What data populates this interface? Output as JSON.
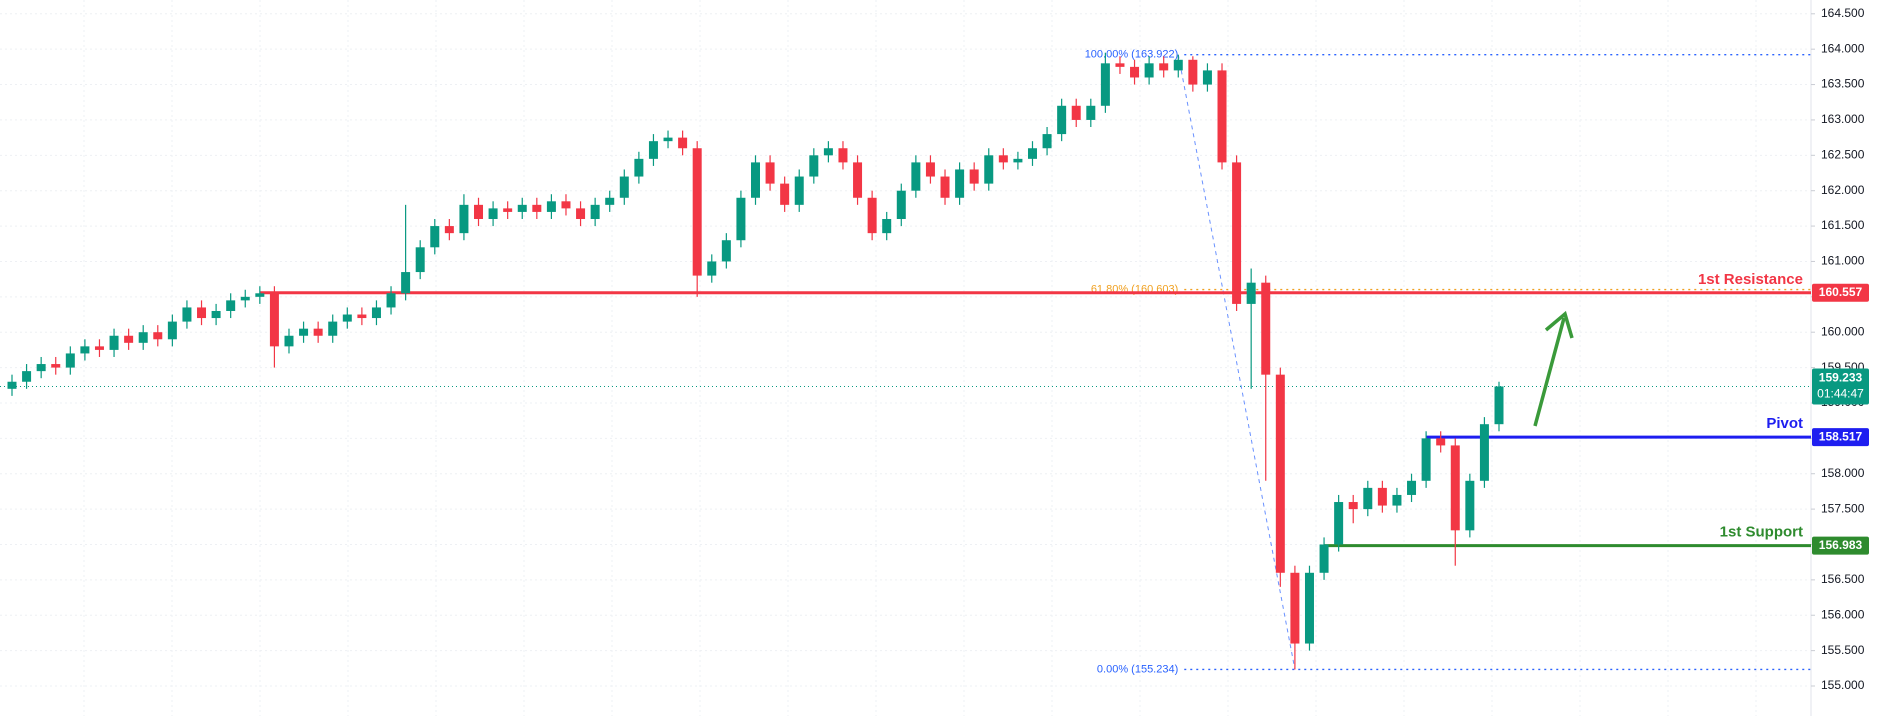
{
  "chart_data": {
    "type": "candlestick",
    "ylim": [
      154.576,
      164.695
    ],
    "yticks": [
      {
        "value": 155,
        "label": "155.000"
      },
      {
        "value": 155.5,
        "label": "155.500"
      },
      {
        "value": 156,
        "label": "156.000"
      },
      {
        "value": 156.5,
        "label": "156.500"
      },
      {
        "value": 157,
        "label": "157.000"
      },
      {
        "value": 157.5,
        "label": "157.500"
      },
      {
        "value": 158,
        "label": "158.000"
      },
      {
        "value": 158.5,
        "label": "158.500"
      },
      {
        "value": 159,
        "label": "159.000"
      },
      {
        "value": 159.5,
        "label": "159.500"
      },
      {
        "value": 160,
        "label": "160.000"
      },
      {
        "value": 160.5,
        "label": "160.500"
      },
      {
        "value": 161,
        "label": "161.000"
      },
      {
        "value": 161.5,
        "label": "161.500"
      },
      {
        "value": 162,
        "label": "162.000"
      },
      {
        "value": 162.5,
        "label": "162.500"
      },
      {
        "value": 163,
        "label": "163.000"
      },
      {
        "value": 163.5,
        "label": "163.500"
      },
      {
        "value": 164,
        "label": "164.000"
      },
      {
        "value": 164.5,
        "label": "164.500"
      }
    ],
    "grid": true,
    "up_color": "#089981",
    "down_color": "#f23645",
    "open": [
      159.2,
      159.3,
      159.45,
      159.55,
      159.5,
      159.7,
      159.8,
      159.75,
      159.95,
      159.85,
      160.0,
      159.9,
      160.15,
      160.35,
      160.2,
      160.3,
      160.45,
      160.5,
      160.55,
      159.8,
      159.95,
      160.05,
      159.95,
      160.15,
      160.25,
      160.2,
      160.35,
      160.55,
      160.85,
      161.2,
      161.5,
      161.4,
      161.8,
      161.6,
      161.75,
      161.7,
      161.8,
      161.7,
      161.85,
      161.75,
      161.6,
      161.8,
      161.9,
      162.2,
      162.45,
      162.7,
      162.75,
      162.6,
      160.8,
      161.0,
      161.3,
      161.9,
      162.4,
      162.1,
      161.8,
      162.2,
      162.5,
      162.6,
      162.4,
      161.9,
      161.4,
      161.6,
      162.0,
      162.4,
      162.2,
      161.9,
      162.3,
      162.1,
      162.5,
      162.4,
      162.45,
      162.6,
      162.8,
      163.2,
      163.0,
      163.2,
      163.8,
      163.75,
      163.6,
      163.8,
      163.7,
      163.85,
      163.5,
      163.7,
      162.4,
      160.4,
      160.7,
      159.4,
      156.6,
      155.6,
      156.6,
      157.0,
      157.6,
      157.5,
      157.8,
      157.55,
      157.7,
      157.9,
      158.5,
      158.4,
      157.2,
      157.9,
      158.7
    ],
    "high": [
      159.4,
      159.55,
      159.65,
      159.65,
      159.8,
      159.9,
      159.9,
      160.05,
      160.05,
      160.1,
      160.1,
      160.25,
      160.45,
      160.45,
      160.4,
      160.55,
      160.6,
      160.65,
      160.65,
      160.05,
      160.15,
      160.15,
      160.25,
      160.35,
      160.35,
      160.45,
      160.65,
      161.8,
      161.3,
      161.6,
      161.6,
      161.95,
      161.9,
      161.85,
      161.85,
      161.9,
      161.9,
      161.95,
      161.95,
      161.85,
      161.9,
      162.0,
      162.3,
      162.55,
      162.8,
      162.85,
      162.85,
      162.7,
      161.1,
      161.4,
      162.0,
      162.5,
      162.5,
      162.2,
      162.3,
      162.6,
      162.7,
      162.7,
      162.5,
      162.0,
      161.7,
      162.1,
      162.5,
      162.5,
      162.3,
      162.4,
      162.4,
      162.6,
      162.6,
      162.55,
      162.7,
      162.9,
      163.3,
      163.3,
      163.3,
      163.95,
      163.9,
      163.85,
      163.9,
      163.9,
      163.922,
      163.9,
      163.8,
      163.8,
      162.5,
      160.9,
      160.8,
      159.5,
      156.7,
      156.7,
      157.1,
      157.7,
      157.7,
      157.9,
      157.9,
      157.8,
      158.0,
      158.6,
      158.6,
      158.5,
      158.0,
      158.8,
      159.3
    ],
    "low": [
      159.1,
      159.2,
      159.35,
      159.4,
      159.4,
      159.6,
      159.65,
      159.65,
      159.75,
      159.75,
      159.8,
      159.8,
      160.05,
      160.1,
      160.1,
      160.2,
      160.35,
      160.4,
      159.5,
      159.7,
      159.85,
      159.85,
      159.85,
      160.05,
      160.1,
      160.1,
      160.25,
      160.45,
      160.75,
      161.1,
      161.3,
      161.3,
      161.5,
      161.5,
      161.6,
      161.6,
      161.6,
      161.6,
      161.65,
      161.5,
      161.5,
      161.7,
      161.8,
      162.1,
      162.35,
      162.6,
      162.5,
      160.5,
      160.7,
      160.9,
      161.2,
      161.8,
      162.0,
      161.7,
      161.7,
      162.1,
      162.4,
      162.3,
      161.8,
      161.3,
      161.3,
      161.5,
      161.9,
      162.1,
      161.8,
      161.8,
      162.0,
      162.0,
      162.3,
      162.3,
      162.35,
      162.5,
      162.7,
      162.9,
      162.9,
      163.1,
      163.65,
      163.5,
      163.5,
      163.6,
      163.6,
      163.4,
      163.4,
      162.3,
      160.3,
      159.2,
      157.9,
      156.4,
      155.234,
      155.5,
      156.5,
      156.9,
      157.3,
      157.4,
      157.45,
      157.45,
      157.6,
      157.8,
      158.3,
      156.7,
      157.1,
      157.8,
      158.6
    ],
    "close": [
      159.3,
      159.45,
      159.55,
      159.5,
      159.7,
      159.8,
      159.75,
      159.95,
      159.85,
      160.0,
      159.9,
      160.15,
      160.35,
      160.2,
      160.3,
      160.45,
      160.5,
      160.55,
      159.8,
      159.95,
      160.05,
      159.95,
      160.15,
      160.25,
      160.2,
      160.35,
      160.55,
      160.85,
      161.2,
      161.5,
      161.4,
      161.8,
      161.6,
      161.75,
      161.7,
      161.8,
      161.7,
      161.85,
      161.75,
      161.6,
      161.8,
      161.9,
      162.2,
      162.45,
      162.7,
      162.75,
      162.6,
      160.8,
      161.0,
      161.3,
      161.9,
      162.4,
      162.1,
      161.8,
      162.2,
      162.5,
      162.6,
      162.4,
      161.9,
      161.4,
      161.6,
      162.0,
      162.4,
      162.2,
      161.9,
      162.3,
      162.1,
      162.5,
      162.4,
      162.45,
      162.6,
      162.8,
      163.2,
      163.0,
      163.2,
      163.8,
      163.75,
      163.6,
      163.8,
      163.7,
      163.85,
      163.5,
      163.7,
      162.4,
      160.4,
      160.7,
      159.4,
      156.6,
      155.6,
      156.6,
      157.0,
      157.6,
      157.5,
      157.8,
      157.55,
      157.7,
      157.9,
      158.5,
      158.4,
      157.2,
      157.9,
      158.7,
      159.233
    ],
    "countdown": "01:44:47",
    "levels": [
      {
        "name": "1st Resistance",
        "value": 160.557,
        "color": "#f23645"
      },
      {
        "name": "Pivot",
        "value": 158.517,
        "color": "#1e1ef0"
      },
      {
        "name": "1st Support",
        "value": 156.983,
        "color": "#2e8b2e"
      }
    ],
    "fib": [
      {
        "label": "100.00% (163.922)",
        "value": 163.922,
        "color": "#2962ff"
      },
      {
        "label": "61.80% (160.603)",
        "value": 160.603,
        "color": "#f0a020"
      },
      {
        "label": "0.00% (155.234)",
        "value": 155.234,
        "color": "#2962ff"
      }
    ]
  }
}
